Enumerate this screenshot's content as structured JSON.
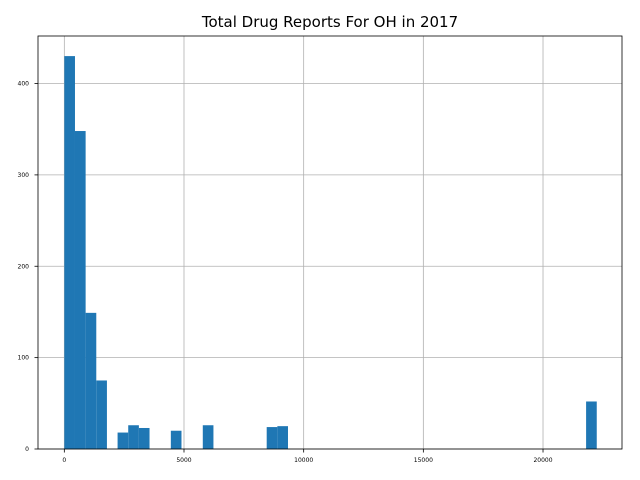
{
  "chart_data": {
    "type": "bar",
    "subtype": "histogram",
    "title": "Total Drug Reports For OH in 2017",
    "xlabel": "",
    "ylabel": "",
    "xlim": [
      -1100,
      23300
    ],
    "ylim": [
      0,
      452
    ],
    "grid": true,
    "color": "#1f77b4",
    "bin_width": 445,
    "xticks": [
      0,
      5000,
      10000,
      15000,
      20000
    ],
    "yticks": [
      0,
      100,
      200,
      300,
      400
    ],
    "bins": [
      {
        "x0": 0,
        "x1": 445,
        "count": 430
      },
      {
        "x0": 445,
        "x1": 890,
        "count": 348
      },
      {
        "x0": 890,
        "x1": 1335,
        "count": 149
      },
      {
        "x0": 1335,
        "x1": 1780,
        "count": 75
      },
      {
        "x0": 2225,
        "x1": 2670,
        "count": 18
      },
      {
        "x0": 2670,
        "x1": 3115,
        "count": 26
      },
      {
        "x0": 3115,
        "x1": 3560,
        "count": 23
      },
      {
        "x0": 4450,
        "x1": 4895,
        "count": 20
      },
      {
        "x0": 5785,
        "x1": 6230,
        "count": 26
      },
      {
        "x0": 8455,
        "x1": 8900,
        "count": 24
      },
      {
        "x0": 8900,
        "x1": 9345,
        "count": 25
      },
      {
        "x0": 21800,
        "x1": 22245,
        "count": 52
      }
    ]
  }
}
